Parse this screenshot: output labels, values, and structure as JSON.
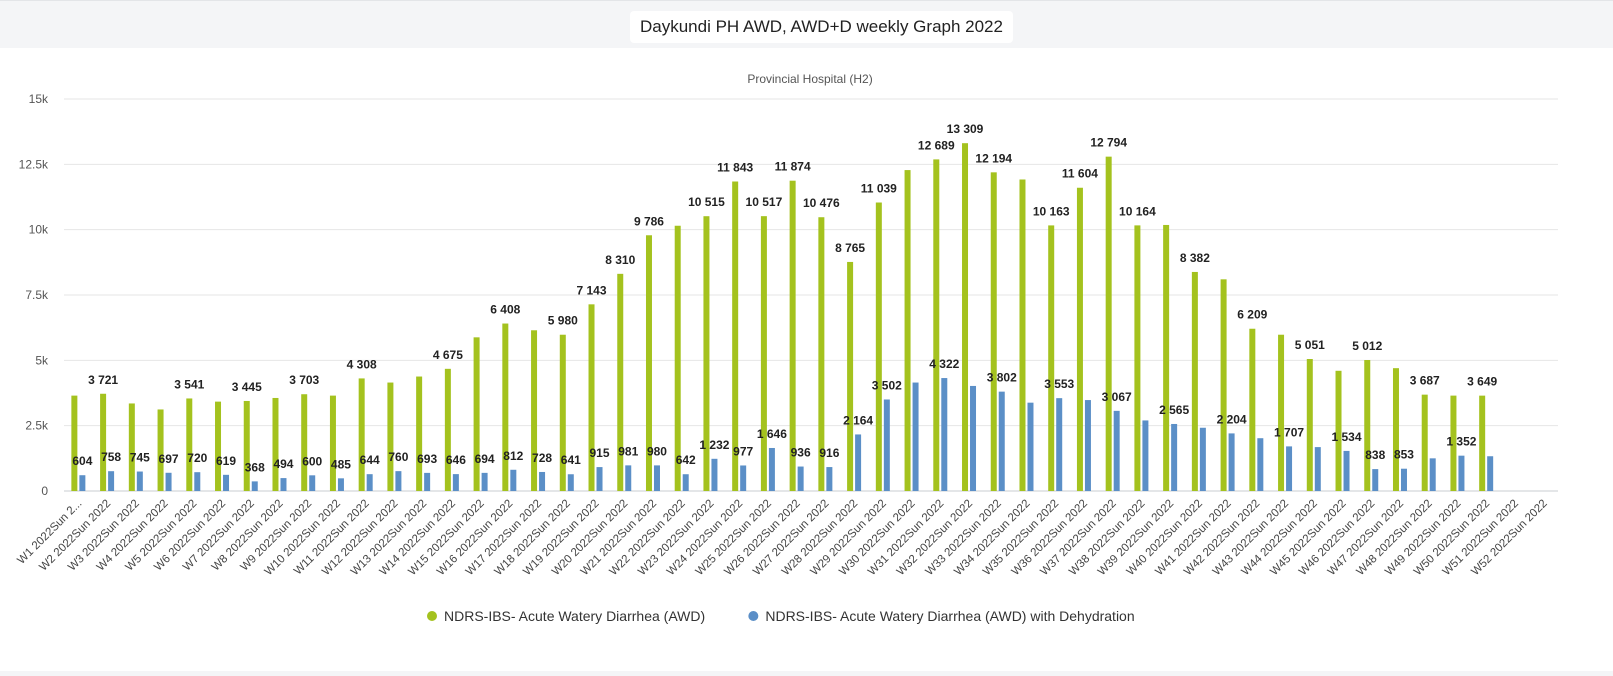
{
  "header": {
    "title": "Daykundi PH AWD, AWD+D weekly Graph 2022"
  },
  "chart_data": {
    "type": "bar",
    "subtitle": "Provincial Hospital (H2)",
    "ylim": [
      0,
      15000
    ],
    "yticks": [
      {
        "value": 0,
        "label": "0"
      },
      {
        "value": 2500,
        "label": "2.5k"
      },
      {
        "value": 5000,
        "label": "5k"
      },
      {
        "value": 7500,
        "label": "7.5k"
      },
      {
        "value": 10000,
        "label": "10k"
      },
      {
        "value": 12500,
        "label": "12.5k"
      },
      {
        "value": 15000,
        "label": "15k"
      }
    ],
    "grid": true,
    "legend_position": "bottom-center",
    "categories": [
      "W1 2022Sun 2...",
      "W2 2022Sun 2022",
      "W3 2022Sun 2022",
      "W4 2022Sun 2022",
      "W5 2022Sun 2022",
      "W6 2022Sun 2022",
      "W7 2022Sun 2022",
      "W8 2022Sun 2022",
      "W9 2022Sun 2022",
      "W10 2022Sun 2022",
      "W11 2022Sun 2022",
      "W12 2022Sun 2022",
      "W13 2022Sun 2022",
      "W14 2022Sun 2022",
      "W15 2022Sun 2022",
      "W16 2022Sun 2022",
      "W17 2022Sun 2022",
      "W18 2022Sun 2022",
      "W19 2022Sun 2022",
      "W20 2022Sun 2022",
      "W21 2022Sun 2022",
      "W22 2022Sun 2022",
      "W23 2022Sun 2022",
      "W24 2022Sun 2022",
      "W25 2022Sun 2022",
      "W26 2022Sun 2022",
      "W27 2022Sun 2022",
      "W28 2022Sun 2022",
      "W29 2022Sun 2022",
      "W30 2022Sun 2022",
      "W31 2022Sun 2022",
      "W32 2022Sun 2022",
      "W33 2022Sun 2022",
      "W34 2022Sun 2022",
      "W35 2022Sun 2022",
      "W36 2022Sun 2022",
      "W37 2022Sun 2022",
      "W38 2022Sun 2022",
      "W39 2022Sun 2022",
      "W40 2022Sun 2022",
      "W41 2022Sun 2022",
      "W42 2022Sun 2022",
      "W43 2022Sun 2022",
      "W44 2022Sun 2022",
      "W45 2022Sun 2022",
      "W46 2022Sun 2022",
      "W47 2022Sun 2022",
      "W48 2022Sun 2022",
      "W49 2022Sun 2022",
      "W50 2022Sun 2022",
      "W51 2022Sun 2022",
      "W52 2022Sun 2022"
    ],
    "series": [
      {
        "name": "NDRS-IBS- Acute Watery Diarrhea (AWD)",
        "color": "#a4c21e",
        "values": [
          3650,
          3721,
          3350,
          3120,
          3541,
          3420,
          3445,
          3560,
          3703,
          3650,
          4308,
          4150,
          4380,
          4675,
          5880,
          6408,
          6150,
          5980,
          7143,
          8310,
          9786,
          10150,
          10515,
          11843,
          10517,
          11874,
          10476,
          8765,
          11039,
          12280,
          12689,
          13309,
          12194,
          11920,
          10163,
          11604,
          12794,
          10164,
          10180,
          8382,
          8100,
          6209,
          5980,
          5051,
          4600,
          5012,
          4700,
          3687,
          3650,
          3649,
          null,
          null
        ],
        "labels": [
          null,
          "3 721",
          null,
          null,
          "3 541",
          null,
          "3 445",
          null,
          "3 703",
          null,
          "4 308",
          null,
          null,
          "4 675",
          null,
          "6 408",
          null,
          "5 980",
          "7 143",
          "8 310",
          "9 786",
          null,
          "10 515",
          "11 843",
          "10 517",
          "11 874",
          "10 476",
          "8 765",
          "11 039",
          null,
          "12 689",
          "13 309",
          "12 194",
          null,
          "10 163",
          "11 604",
          "12 794",
          "10 164",
          null,
          "8 382",
          null,
          "6 209",
          null,
          "5 051",
          null,
          "5 012",
          null,
          "3 687",
          null,
          "3 649",
          null,
          null
        ]
      },
      {
        "name": "NDRS-IBS- Acute Watery Diarrhea (AWD) with Dehydration",
        "color": "#5b8fc7",
        "values": [
          604,
          758,
          745,
          697,
          720,
          619,
          368,
          494,
          600,
          485,
          644,
          760,
          693,
          646,
          694,
          812,
          728,
          641,
          915,
          981,
          980,
          642,
          1232,
          977,
          1646,
          936,
          916,
          2164,
          3502,
          4150,
          4322,
          4020,
          3802,
          3380,
          3553,
          3480,
          3067,
          2700,
          2565,
          2420,
          2204,
          2020,
          1707,
          1680,
          1534,
          838,
          853,
          1250,
          1352,
          1330,
          null,
          null
        ],
        "labels": [
          "604",
          "758",
          "745",
          "697",
          "720",
          "619",
          "368",
          "494",
          "600",
          "485",
          "644",
          "760",
          "693",
          "646",
          "694",
          "812",
          "728",
          "641",
          "915",
          "981",
          "980",
          "642",
          "1 232",
          "977",
          "1 646",
          "936",
          "916",
          "2 164",
          "3 502",
          null,
          "4 322",
          null,
          "3 802",
          null,
          "3 553",
          null,
          "3 067",
          null,
          "2 565",
          null,
          "2 204",
          null,
          "1 707",
          null,
          "1 534",
          "838",
          "853",
          null,
          "1 352",
          null,
          null,
          null
        ]
      }
    ]
  }
}
